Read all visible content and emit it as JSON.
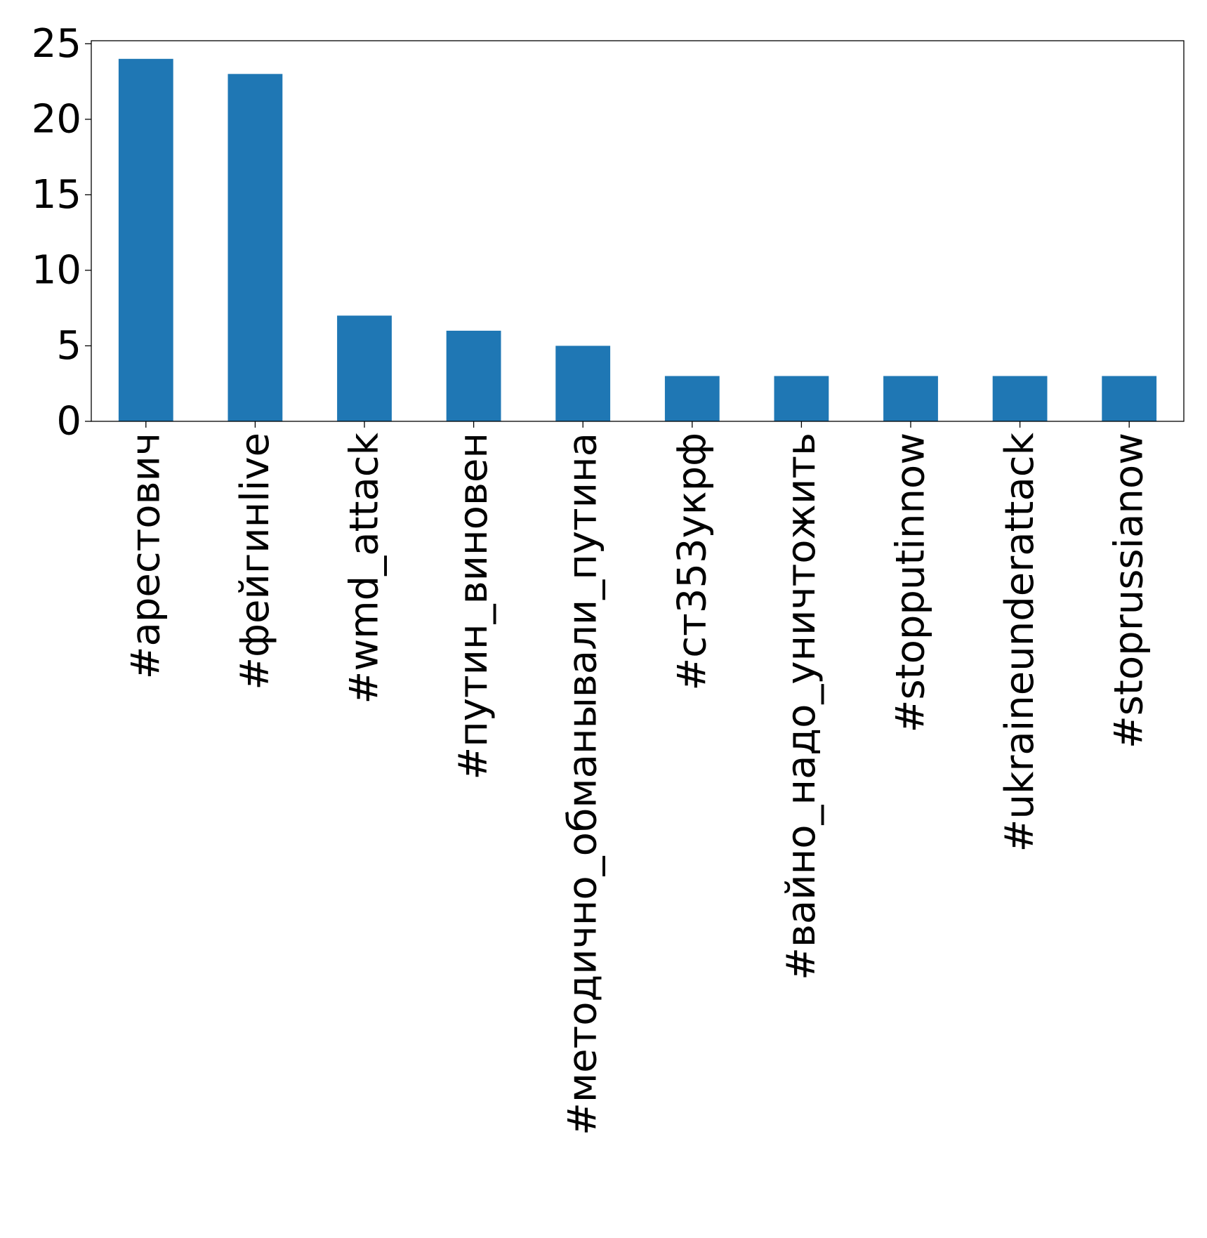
{
  "colors": {
    "bar": "#1f77b4",
    "axis": "#000000",
    "background": "#ffffff"
  },
  "chart_data": {
    "type": "bar",
    "title": "",
    "xlabel": "",
    "ylabel": "",
    "categories": [
      "#арестович",
      "#фейгинlive",
      "#wmd_attack",
      "#путин_виновен",
      "#методично_обманывали_путина",
      "#ст353укрф",
      "#вайно_надо_уничтожить",
      "#stopputinnow",
      "#ukraineunderattack",
      "#stoprussianow"
    ],
    "values": [
      24,
      23,
      7,
      6,
      5,
      3,
      3,
      3,
      3,
      3
    ],
    "ylim": [
      0,
      25.2
    ],
    "yticks": [
      0,
      5,
      10,
      15,
      20,
      25
    ],
    "grid": false,
    "legend": "none",
    "x_tick_rotation": "vertical"
  }
}
